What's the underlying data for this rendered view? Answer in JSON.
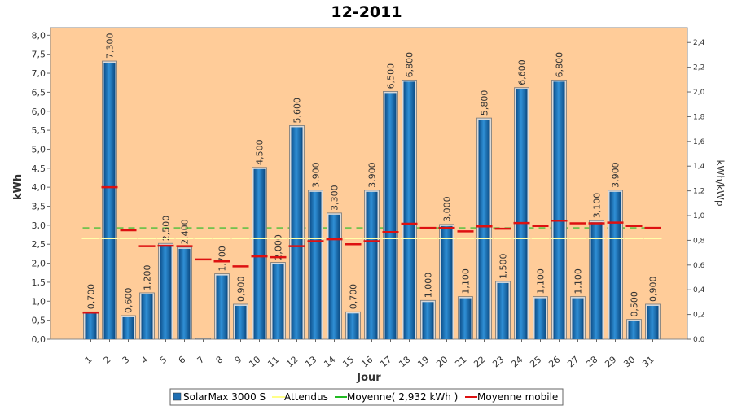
{
  "chart_data": {
    "type": "bar",
    "title": "12-2011",
    "xlabel": "Jour",
    "ylabel": "kWh",
    "y2label": "kWh/kWp",
    "ylim": [
      0,
      8.2
    ],
    "y2lim": [
      0,
      2.52
    ],
    "yticks": [
      "0,0",
      "0,5",
      "1,0",
      "1,5",
      "2,0",
      "2,5",
      "3,0",
      "3,5",
      "4,0",
      "4,5",
      "5,0",
      "5,5",
      "6,0",
      "6,5",
      "7,0",
      "7,5",
      "8,0"
    ],
    "y2ticks": [
      "0,0",
      "0,2",
      "0,4",
      "0,6",
      "0,8",
      "1,0",
      "1,2",
      "1,4",
      "1,6",
      "1,8",
      "2,0",
      "2,2",
      "2,4"
    ],
    "categories": [
      "1",
      "2",
      "3",
      "4",
      "5",
      "6",
      "7",
      "8",
      "9",
      "10",
      "11",
      "12",
      "13",
      "14",
      "15",
      "16",
      "17",
      "18",
      "19",
      "20",
      "21",
      "22",
      "23",
      "24",
      "25",
      "26",
      "27",
      "28",
      "29",
      "30",
      "31"
    ],
    "series": [
      {
        "name": "SolarMax 3000 S",
        "color": "#1f6fb3",
        "values": [
          0.7,
          7.3,
          0.6,
          1.2,
          2.5,
          2.4,
          0.0,
          1.7,
          0.9,
          4.5,
          2.0,
          5.6,
          3.9,
          3.3,
          0.7,
          3.9,
          6.5,
          6.8,
          1.0,
          3.0,
          1.1,
          5.8,
          1.5,
          6.6,
          1.1,
          6.8,
          1.1,
          3.1,
          3.9,
          0.5,
          0.9
        ],
        "labels": [
          "0,700",
          "7,300",
          "0,600",
          "1,200",
          "2,500",
          "2,400",
          "",
          "1,700",
          "0,900",
          "4,500",
          "2,000",
          "5,600",
          "3,900",
          "3,300",
          "0,700",
          "3,900",
          "6,500",
          "6,800",
          "1,000",
          "3,000",
          "1,100",
          "5,800",
          "1,500",
          "6,600",
          "1,100",
          "6,800",
          "1,100",
          "3,100",
          "3,900",
          "0,500",
          "0,900"
        ]
      },
      {
        "name": "Attendus",
        "color": "#ffffaa",
        "values": [
          2.65,
          2.65,
          2.65,
          2.65,
          2.65,
          2.65,
          2.65,
          2.65,
          2.65,
          2.65,
          2.65,
          2.65,
          2.65,
          2.65,
          2.65,
          2.65,
          2.65,
          2.65,
          2.65,
          2.65,
          2.65,
          2.65,
          2.65,
          2.65,
          2.65,
          2.65,
          2.65,
          2.65,
          2.65,
          2.65,
          2.65
        ]
      },
      {
        "name": "Moyenne( 2,932 kWh )",
        "color": "#22bb22",
        "value": 2.932
      },
      {
        "name": "Moyenne mobile",
        "color": "#dd1111",
        "values": [
          0.7,
          4.0,
          2.87,
          2.45,
          2.46,
          2.45,
          2.1,
          2.05,
          1.92,
          2.18,
          2.16,
          2.45,
          2.58,
          2.63,
          2.5,
          2.58,
          2.82,
          3.04,
          2.93,
          2.93,
          2.84,
          2.97,
          2.91,
          3.06,
          2.98,
          3.12,
          3.05,
          3.05,
          3.07,
          2.98,
          2.93
        ]
      }
    ],
    "grid": true,
    "legend": "bottom"
  }
}
